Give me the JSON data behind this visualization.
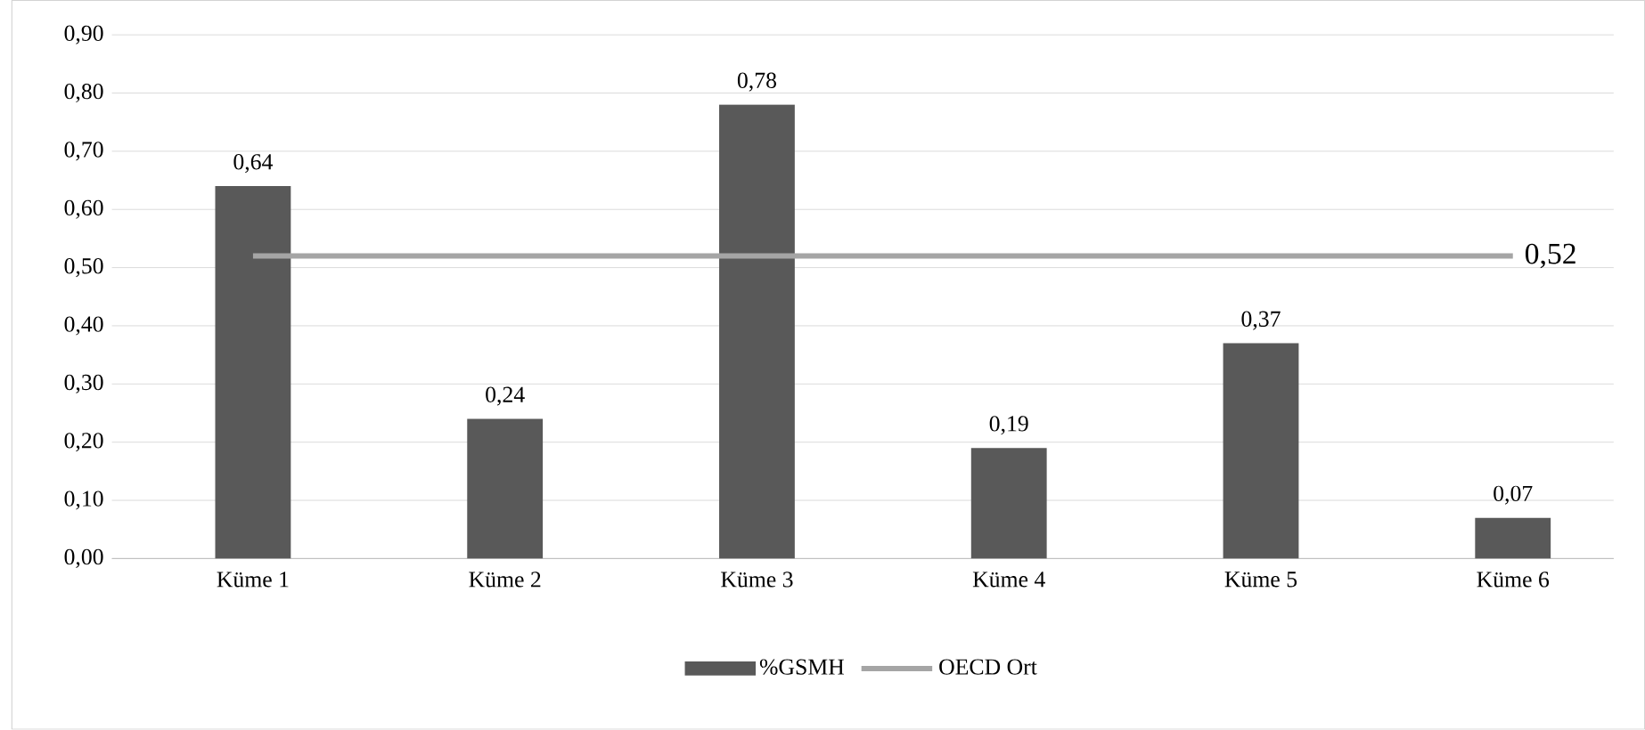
{
  "chart_data": {
    "type": "bar",
    "categories": [
      "Küme 1",
      "Küme 2",
      "Küme 3",
      "Küme 4",
      "Küme 5",
      "Küme 6"
    ],
    "series": [
      {
        "name": "%GSMH",
        "color": "#595959",
        "values": [
          0.64,
          0.24,
          0.78,
          0.19,
          0.37,
          0.07
        ],
        "value_labels": [
          "0,64",
          "0,24",
          "0,78",
          "0,19",
          "0,37",
          "0,07"
        ]
      },
      {
        "name": "OECD Ort",
        "type": "line",
        "color": "#a5a5a5",
        "values": [
          0.52,
          0.52,
          0.52,
          0.52,
          0.52,
          0.52
        ],
        "value_labels": [
          null,
          null,
          null,
          null,
          null,
          "0,52"
        ]
      }
    ],
    "ylim": [
      0,
      0.9
    ],
    "yticks": [
      {
        "value": 0,
        "label": "0,00"
      },
      {
        "value": 0.1,
        "label": "0,10"
      },
      {
        "value": 0.2,
        "label": "0,20"
      },
      {
        "value": 0.3,
        "label": "0,30"
      },
      {
        "value": 0.4,
        "label": "0,40"
      },
      {
        "value": 0.5,
        "label": "0,50"
      },
      {
        "value": 0.6,
        "label": "0,60"
      },
      {
        "value": 0.7,
        "label": "0,70"
      },
      {
        "value": 0.8,
        "label": "0,80"
      },
      {
        "value": 0.9,
        "label": "0,90"
      }
    ],
    "grid": "y",
    "legend": "bottom"
  }
}
